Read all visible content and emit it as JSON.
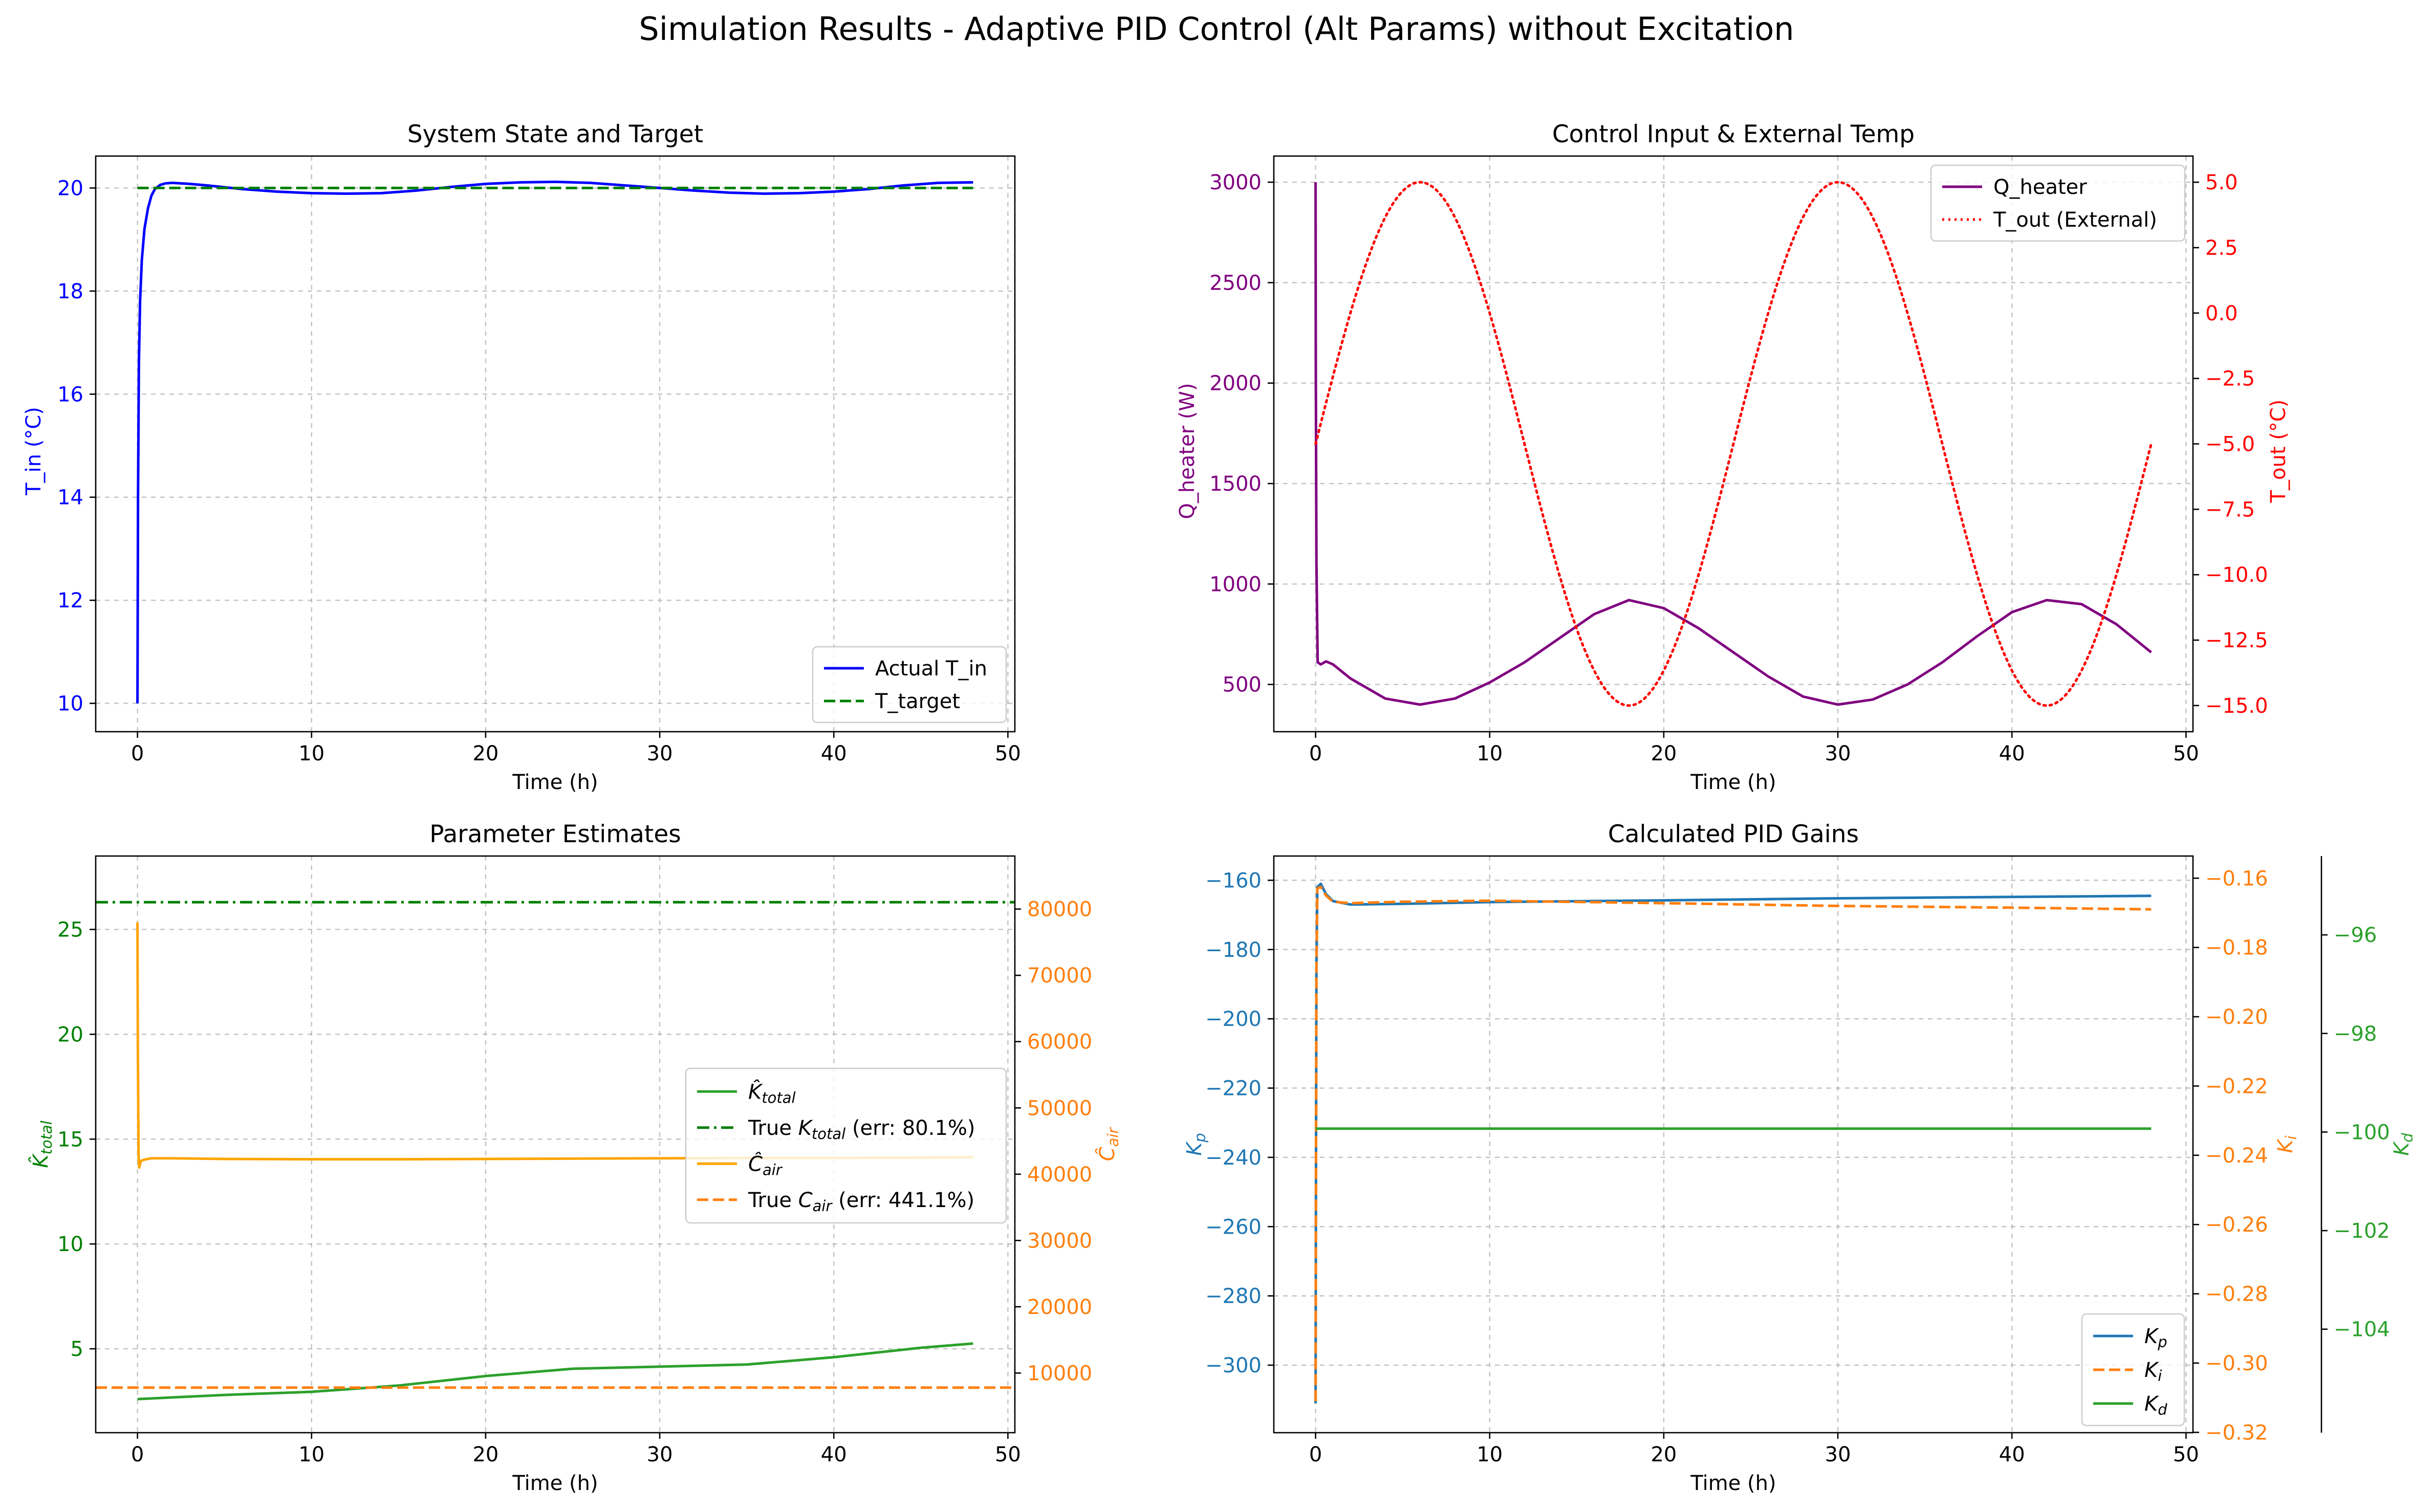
{
  "figure": {
    "title": "Simulation Results - Adaptive PID Control (Alt Params) without Excitation"
  },
  "colors": {
    "blue": "#0000ff",
    "green": "#008000",
    "purple": "#800080",
    "red": "#ff0000",
    "mpl_blue": "#1f77b4",
    "mpl_orange": "#ff7f0e",
    "mpl_green": "#2ca02c",
    "light_orange": "#ffa500"
  },
  "chart_data": [
    {
      "id": "p1",
      "type": "line",
      "title": "System State and Target",
      "xlabel": "Time (h)",
      "xlim": [
        -2.4,
        50.4
      ],
      "xticks": [
        0,
        10,
        20,
        30,
        40,
        50
      ],
      "grid": true,
      "legend_position": "lower-right",
      "axes": [
        {
          "side": "left",
          "label": "T_in (°C)",
          "color": "#0000ff",
          "ylim": [
            9.45,
            20.62
          ],
          "ticks": [
            10,
            12,
            14,
            16,
            18,
            20
          ]
        }
      ],
      "series": [
        {
          "name": "Actual T_in",
          "axis": 0,
          "color": "#0000ff",
          "style": "solid",
          "x": [
            0,
            0.03,
            0.08,
            0.15,
            0.25,
            0.4,
            0.6,
            0.8,
            1.0,
            1.3,
            1.6,
            2.0,
            3,
            4,
            6,
            8,
            10,
            12,
            14,
            16,
            18,
            20,
            22,
            24,
            26,
            28,
            30,
            32,
            34,
            36,
            38,
            40,
            42,
            44,
            46,
            48
          ],
          "y": [
            10.0,
            14.0,
            16.6,
            17.8,
            18.6,
            19.2,
            19.6,
            19.85,
            19.98,
            20.06,
            20.09,
            20.1,
            20.08,
            20.05,
            19.98,
            19.93,
            19.9,
            19.89,
            19.9,
            19.95,
            20.02,
            20.08,
            20.11,
            20.12,
            20.1,
            20.05,
            20.0,
            19.95,
            19.91,
            19.89,
            19.9,
            19.93,
            19.98,
            20.05,
            20.1,
            20.11
          ]
        },
        {
          "name": "T_target",
          "axis": 0,
          "color": "#008000",
          "style": "dashed",
          "x": [
            0,
            48
          ],
          "y": [
            20,
            20
          ]
        }
      ]
    },
    {
      "id": "p2",
      "type": "line",
      "title": "Control Input & External Temp",
      "xlabel": "Time (h)",
      "xlim": [
        -2.4,
        50.4
      ],
      "xticks": [
        0,
        10,
        20,
        30,
        40,
        50
      ],
      "grid": true,
      "legend_position": "upper-right",
      "axes": [
        {
          "side": "left",
          "label": "Q_heater (W)",
          "color": "#800080",
          "ylim": [
            265,
            3130
          ],
          "ticks": [
            500,
            1000,
            1500,
            2000,
            2500,
            3000
          ]
        },
        {
          "side": "right",
          "label": "T_out (°C)",
          "color": "#ff0000",
          "ylim": [
            -16.0,
            6.0
          ],
          "ticks": [
            -15.0,
            -12.5,
            -10.0,
            -7.5,
            -5.0,
            -2.5,
            0.0,
            2.5,
            5.0
          ]
        }
      ],
      "series": [
        {
          "name": "Q_heater",
          "axis": 0,
          "color": "#800080",
          "style": "solid",
          "x": [
            0,
            0.01,
            0.05,
            0.12,
            0.3,
            0.6,
            1,
            2,
            4,
            6,
            8,
            10,
            12,
            14,
            16,
            18,
            20,
            22,
            24,
            26,
            28,
            30,
            32,
            34,
            36,
            38,
            40,
            42,
            44,
            46,
            48
          ],
          "y": [
            3000,
            2100,
            1100,
            610,
            600,
            615,
            600,
            530,
            430,
            400,
            430,
            510,
            610,
            730,
            850,
            920,
            880,
            780,
            660,
            540,
            440,
            400,
            425,
            500,
            610,
            740,
            860,
            920,
            900,
            800,
            660
          ]
        },
        {
          "name": "T_out (External)",
          "axis": 1,
          "color": "#ff0000",
          "style": "dotted",
          "formula": "T_out = -5 + 10*sin(2*pi*t/24)",
          "x_range": [
            0,
            48
          ]
        }
      ]
    },
    {
      "id": "p3",
      "type": "line",
      "title": "Parameter Estimates",
      "xlabel": "Time (h)",
      "xlim": [
        -2.4,
        50.4
      ],
      "xticks": [
        0,
        10,
        20,
        30,
        40,
        50
      ],
      "grid": true,
      "legend_position": "center-right",
      "axes": [
        {
          "side": "left",
          "label": "K̂total",
          "color": "#008000",
          "ylim": [
            1.0,
            28.5
          ],
          "ticks": [
            5,
            10,
            15,
            20,
            25
          ]
        },
        {
          "side": "right",
          "label": "Ĉair",
          "color": "#ff7f0e",
          "ylim": [
            1000,
            88000
          ],
          "ticks": [
            10000,
            20000,
            30000,
            40000,
            50000,
            60000,
            70000,
            80000
          ]
        }
      ],
      "series": [
        {
          "name": "K̂total",
          "axis": 0,
          "color": "#2ca02c",
          "style": "solid",
          "x": [
            0,
            5,
            10,
            15,
            20,
            25,
            30,
            35,
            40,
            45,
            48
          ],
          "y": [
            2.6,
            2.8,
            2.95,
            3.25,
            3.7,
            4.05,
            4.15,
            4.25,
            4.6,
            5.05,
            5.25
          ]
        },
        {
          "name": "True Ktotal (err: 80.1%)",
          "axis": 0,
          "color": "#008000",
          "style": "dashdot",
          "x": [
            -2.4,
            50.4
          ],
          "y": [
            26.3,
            26.3
          ]
        },
        {
          "name": "Ĉair",
          "axis": 1,
          "color": "#ffa500",
          "style": "solid",
          "x": [
            0,
            0.02,
            0.06,
            0.1,
            0.2,
            0.4,
            0.8,
            2,
            5,
            10,
            15,
            20,
            25,
            30,
            35,
            40,
            45,
            48
          ],
          "y": [
            78000,
            60000,
            43000,
            41000,
            42000,
            42200,
            42400,
            42400,
            42300,
            42250,
            42250,
            42300,
            42350,
            42400,
            42450,
            42450,
            42500,
            42550
          ]
        },
        {
          "name": "True Cair (err: 441.1%)",
          "axis": 1,
          "color": "#ff7f0e",
          "style": "dashed",
          "x": [
            -2.4,
            50.4
          ],
          "y": [
            7800,
            7800
          ]
        }
      ]
    },
    {
      "id": "p4",
      "type": "line",
      "title": "Calculated PID Gains",
      "xlabel": "Time (h)",
      "xlim": [
        -2.4,
        50.4
      ],
      "xticks": [
        0,
        10,
        20,
        30,
        40,
        50
      ],
      "grid": true,
      "legend_position": "lower-right",
      "axes": [
        {
          "side": "left",
          "label": "Kp",
          "color": "#1f77b4",
          "ylim": [
            -319.5,
            -153.0
          ],
          "ticks": [
            -300,
            -280,
            -260,
            -240,
            -220,
            -200,
            -180,
            -160
          ]
        },
        {
          "side": "right",
          "label": "Ki",
          "color": "#ff7f0e",
          "ylim": [
            -0.3201,
            -0.1536
          ],
          "ticks": [
            -0.32,
            -0.3,
            -0.28,
            -0.26,
            -0.24,
            -0.22,
            -0.2,
            -0.18,
            -0.16
          ]
        },
        {
          "side": "right-offset",
          "label": "Kd",
          "color": "#2ca02c",
          "ylim": [
            -106.1,
            -94.4
          ],
          "ticks": [
            -104,
            -102,
            -100,
            -98,
            -96
          ]
        }
      ],
      "series": [
        {
          "name": "Kp",
          "axis": 0,
          "color": "#1f77b4",
          "style": "solid",
          "x": [
            0,
            0.02,
            0.05,
            0.1,
            0.3,
            0.6,
            1,
            2,
            5,
            10,
            20,
            30,
            40,
            48
          ],
          "y": [
            -311,
            -250,
            -185,
            -162,
            -161,
            -164,
            -166,
            -167,
            -166.8,
            -166.3,
            -165.8,
            -165.2,
            -164.8,
            -164.5
          ]
        },
        {
          "name": "Ki",
          "axis": 1,
          "color": "#ff7f0e",
          "style": "dashed",
          "x": [
            0,
            0.02,
            0.05,
            0.1,
            0.3,
            0.6,
            1,
            2,
            5,
            10,
            20,
            30,
            40,
            48
          ],
          "y": [
            -0.311,
            -0.25,
            -0.186,
            -0.163,
            -0.1625,
            -0.165,
            -0.1668,
            -0.1672,
            -0.1668,
            -0.1665,
            -0.1672,
            -0.168,
            -0.1685,
            -0.169
          ]
        },
        {
          "name": "Kd",
          "axis": 2,
          "color": "#2ca02c",
          "style": "solid",
          "x": [
            0,
            48
          ],
          "y": [
            -99.93,
            -99.93
          ]
        }
      ]
    }
  ]
}
